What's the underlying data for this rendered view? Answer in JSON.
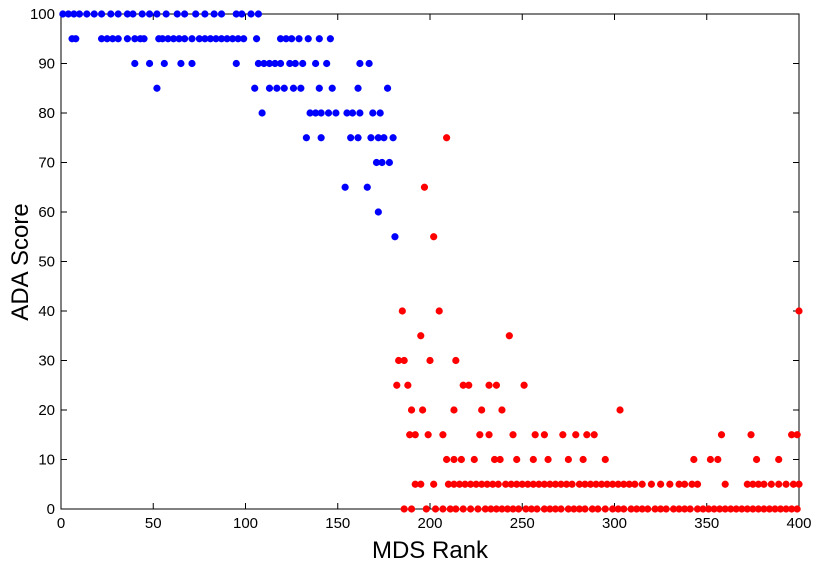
{
  "chart_data": {
    "type": "scatter",
    "title": "",
    "xlabel": "MDS Rank",
    "ylabel": "ADA Score",
    "xlim": [
      0,
      400
    ],
    "ylim": [
      0,
      100
    ],
    "xticks": [
      "0",
      "50",
      "100",
      "150",
      "200",
      "250",
      "300",
      "350",
      "400"
    ],
    "yticks": [
      "0",
      "10",
      "20",
      "30",
      "40",
      "50",
      "60",
      "70",
      "80",
      "90",
      "100"
    ],
    "grid": false,
    "legend": "none",
    "series": [
      {
        "color": "#0000ff",
        "points": [
          [
            1,
            100
          ],
          [
            4,
            100
          ],
          [
            7,
            100
          ],
          [
            10,
            100
          ],
          [
            14,
            100
          ],
          [
            18,
            100
          ],
          [
            22,
            100
          ],
          [
            27,
            100
          ],
          [
            31,
            100
          ],
          [
            36,
            100
          ],
          [
            39,
            100
          ],
          [
            44,
            100
          ],
          [
            48,
            100
          ],
          [
            52,
            100
          ],
          [
            57,
            100
          ],
          [
            63,
            100
          ],
          [
            67,
            100
          ],
          [
            73,
            100
          ],
          [
            78,
            100
          ],
          [
            83,
            100
          ],
          [
            87,
            100
          ],
          [
            95,
            100
          ],
          [
            98,
            100
          ],
          [
            103,
            100
          ],
          [
            107,
            100
          ],
          [
            6,
            95
          ],
          [
            8,
            95
          ],
          [
            22,
            95
          ],
          [
            25,
            95
          ],
          [
            28,
            95
          ],
          [
            31,
            95
          ],
          [
            36,
            95
          ],
          [
            40,
            95
          ],
          [
            43,
            95
          ],
          [
            45,
            95
          ],
          [
            53,
            95
          ],
          [
            55,
            95
          ],
          [
            58,
            95
          ],
          [
            61,
            95
          ],
          [
            64,
            95
          ],
          [
            67,
            95
          ],
          [
            71,
            95
          ],
          [
            75,
            95
          ],
          [
            78,
            95
          ],
          [
            81,
            95
          ],
          [
            84,
            95
          ],
          [
            87,
            95
          ],
          [
            90,
            95
          ],
          [
            93,
            95
          ],
          [
            96,
            95
          ],
          [
            99,
            95
          ],
          [
            106,
            95
          ],
          [
            119,
            95
          ],
          [
            122,
            95
          ],
          [
            125,
            95
          ],
          [
            129,
            95
          ],
          [
            134,
            95
          ],
          [
            140,
            95
          ],
          [
            146,
            95
          ],
          [
            40,
            90
          ],
          [
            48,
            90
          ],
          [
            56,
            90
          ],
          [
            65,
            90
          ],
          [
            71,
            90
          ],
          [
            95,
            90
          ],
          [
            107,
            90
          ],
          [
            110,
            90
          ],
          [
            113,
            90
          ],
          [
            116,
            90
          ],
          [
            119,
            90
          ],
          [
            124,
            90
          ],
          [
            127,
            90
          ],
          [
            131,
            90
          ],
          [
            138,
            90
          ],
          [
            144,
            90
          ],
          [
            162,
            90
          ],
          [
            167,
            90
          ],
          [
            52,
            85
          ],
          [
            105,
            85
          ],
          [
            113,
            85
          ],
          [
            117,
            85
          ],
          [
            121,
            85
          ],
          [
            126,
            85
          ],
          [
            130,
            85
          ],
          [
            140,
            85
          ],
          [
            147,
            85
          ],
          [
            161,
            85
          ],
          [
            177,
            85
          ],
          [
            109,
            80
          ],
          [
            135,
            80
          ],
          [
            138,
            80
          ],
          [
            141,
            80
          ],
          [
            145,
            80
          ],
          [
            149,
            80
          ],
          [
            155,
            80
          ],
          [
            158,
            80
          ],
          [
            162,
            80
          ],
          [
            169,
            80
          ],
          [
            173,
            80
          ],
          [
            133,
            75
          ],
          [
            141,
            75
          ],
          [
            157,
            75
          ],
          [
            161,
            75
          ],
          [
            168,
            75
          ],
          [
            172,
            75
          ],
          [
            175,
            75
          ],
          [
            180,
            75
          ],
          [
            171,
            70
          ],
          [
            174,
            70
          ],
          [
            178,
            70
          ],
          [
            154,
            65
          ],
          [
            166,
            65
          ],
          [
            172,
            60
          ],
          [
            181,
            55
          ]
        ]
      },
      {
        "color": "#ff0000",
        "points": [
          [
            209,
            75
          ],
          [
            197,
            65
          ],
          [
            202,
            55
          ],
          [
            185,
            40
          ],
          [
            205,
            40
          ],
          [
            400,
            40
          ],
          [
            195,
            35
          ],
          [
            243,
            35
          ],
          [
            183,
            30
          ],
          [
            186,
            30
          ],
          [
            200,
            30
          ],
          [
            214,
            30
          ],
          [
            182,
            25
          ],
          [
            188,
            25
          ],
          [
            218,
            25
          ],
          [
            221,
            25
          ],
          [
            232,
            25
          ],
          [
            236,
            25
          ],
          [
            251,
            25
          ],
          [
            190,
            20
          ],
          [
            196,
            20
          ],
          [
            213,
            20
          ],
          [
            228,
            20
          ],
          [
            239,
            20
          ],
          [
            303,
            20
          ],
          [
            189,
            15
          ],
          [
            192,
            15
          ],
          [
            199,
            15
          ],
          [
            207,
            15
          ],
          [
            227,
            15
          ],
          [
            232,
            15
          ],
          [
            245,
            15
          ],
          [
            257,
            15
          ],
          [
            262,
            15
          ],
          [
            272,
            15
          ],
          [
            279,
            15
          ],
          [
            285,
            15
          ],
          [
            289,
            15
          ],
          [
            358,
            15
          ],
          [
            374,
            15
          ],
          [
            396,
            15
          ],
          [
            399,
            15
          ],
          [
            209,
            10
          ],
          [
            213,
            10
          ],
          [
            217,
            10
          ],
          [
            224,
            10
          ],
          [
            235,
            10
          ],
          [
            238,
            10
          ],
          [
            247,
            10
          ],
          [
            256,
            10
          ],
          [
            264,
            10
          ],
          [
            275,
            10
          ],
          [
            283,
            10
          ],
          [
            295,
            10
          ],
          [
            343,
            10
          ],
          [
            352,
            10
          ],
          [
            356,
            10
          ],
          [
            377,
            10
          ],
          [
            389,
            10
          ],
          [
            192,
            5
          ],
          [
            195,
            5
          ],
          [
            202,
            5
          ],
          [
            210,
            5
          ],
          [
            213,
            5
          ],
          [
            216,
            5
          ],
          [
            219,
            5
          ],
          [
            222,
            5
          ],
          [
            225,
            5
          ],
          [
            228,
            5
          ],
          [
            231,
            5
          ],
          [
            234,
            5
          ],
          [
            237,
            5
          ],
          [
            241,
            5
          ],
          [
            244,
            5
          ],
          [
            247,
            5
          ],
          [
            250,
            5
          ],
          [
            253,
            5
          ],
          [
            256,
            5
          ],
          [
            259,
            5
          ],
          [
            262,
            5
          ],
          [
            265,
            5
          ],
          [
            268,
            5
          ],
          [
            271,
            5
          ],
          [
            274,
            5
          ],
          [
            277,
            5
          ],
          [
            281,
            5
          ],
          [
            284,
            5
          ],
          [
            287,
            5
          ],
          [
            290,
            5
          ],
          [
            293,
            5
          ],
          [
            296,
            5
          ],
          [
            299,
            5
          ],
          [
            302,
            5
          ],
          [
            305,
            5
          ],
          [
            308,
            5
          ],
          [
            311,
            5
          ],
          [
            315,
            5
          ],
          [
            320,
            5
          ],
          [
            325,
            5
          ],
          [
            330,
            5
          ],
          [
            335,
            5
          ],
          [
            338,
            5
          ],
          [
            342,
            5
          ],
          [
            345,
            5
          ],
          [
            360,
            5
          ],
          [
            372,
            5
          ],
          [
            375,
            5
          ],
          [
            378,
            5
          ],
          [
            381,
            5
          ],
          [
            385,
            5
          ],
          [
            389,
            5
          ],
          [
            393,
            5
          ],
          [
            397,
            5
          ],
          [
            400,
            5
          ],
          [
            186,
            0
          ],
          [
            190,
            0
          ],
          [
            198,
            0
          ],
          [
            203,
            0
          ],
          [
            207,
            0
          ],
          [
            211,
            0
          ],
          [
            214,
            0
          ],
          [
            218,
            0
          ],
          [
            222,
            0
          ],
          [
            226,
            0
          ],
          [
            230,
            0
          ],
          [
            233,
            0
          ],
          [
            236,
            0
          ],
          [
            239,
            0
          ],
          [
            242,
            0
          ],
          [
            245,
            0
          ],
          [
            248,
            0
          ],
          [
            252,
            0
          ],
          [
            255,
            0
          ],
          [
            258,
            0
          ],
          [
            262,
            0
          ],
          [
            265,
            0
          ],
          [
            268,
            0
          ],
          [
            271,
            0
          ],
          [
            275,
            0
          ],
          [
            278,
            0
          ],
          [
            281,
            0
          ],
          [
            284,
            0
          ],
          [
            288,
            0
          ],
          [
            291,
            0
          ],
          [
            295,
            0
          ],
          [
            299,
            0
          ],
          [
            302,
            0
          ],
          [
            305,
            0
          ],
          [
            309,
            0
          ],
          [
            312,
            0
          ],
          [
            315,
            0
          ],
          [
            318,
            0
          ],
          [
            322,
            0
          ],
          [
            325,
            0
          ],
          [
            328,
            0
          ],
          [
            332,
            0
          ],
          [
            335,
            0
          ],
          [
            338,
            0
          ],
          [
            341,
            0
          ],
          [
            345,
            0
          ],
          [
            348,
            0
          ],
          [
            351,
            0
          ],
          [
            354,
            0
          ],
          [
            357,
            0
          ],
          [
            360,
            0
          ],
          [
            363,
            0
          ],
          [
            366,
            0
          ],
          [
            369,
            0
          ],
          [
            372,
            0
          ],
          [
            375,
            0
          ],
          [
            378,
            0
          ],
          [
            381,
            0
          ],
          [
            384,
            0
          ],
          [
            387,
            0
          ],
          [
            390,
            0
          ],
          [
            393,
            0
          ],
          [
            396,
            0
          ],
          [
            399,
            0
          ]
        ]
      }
    ]
  }
}
